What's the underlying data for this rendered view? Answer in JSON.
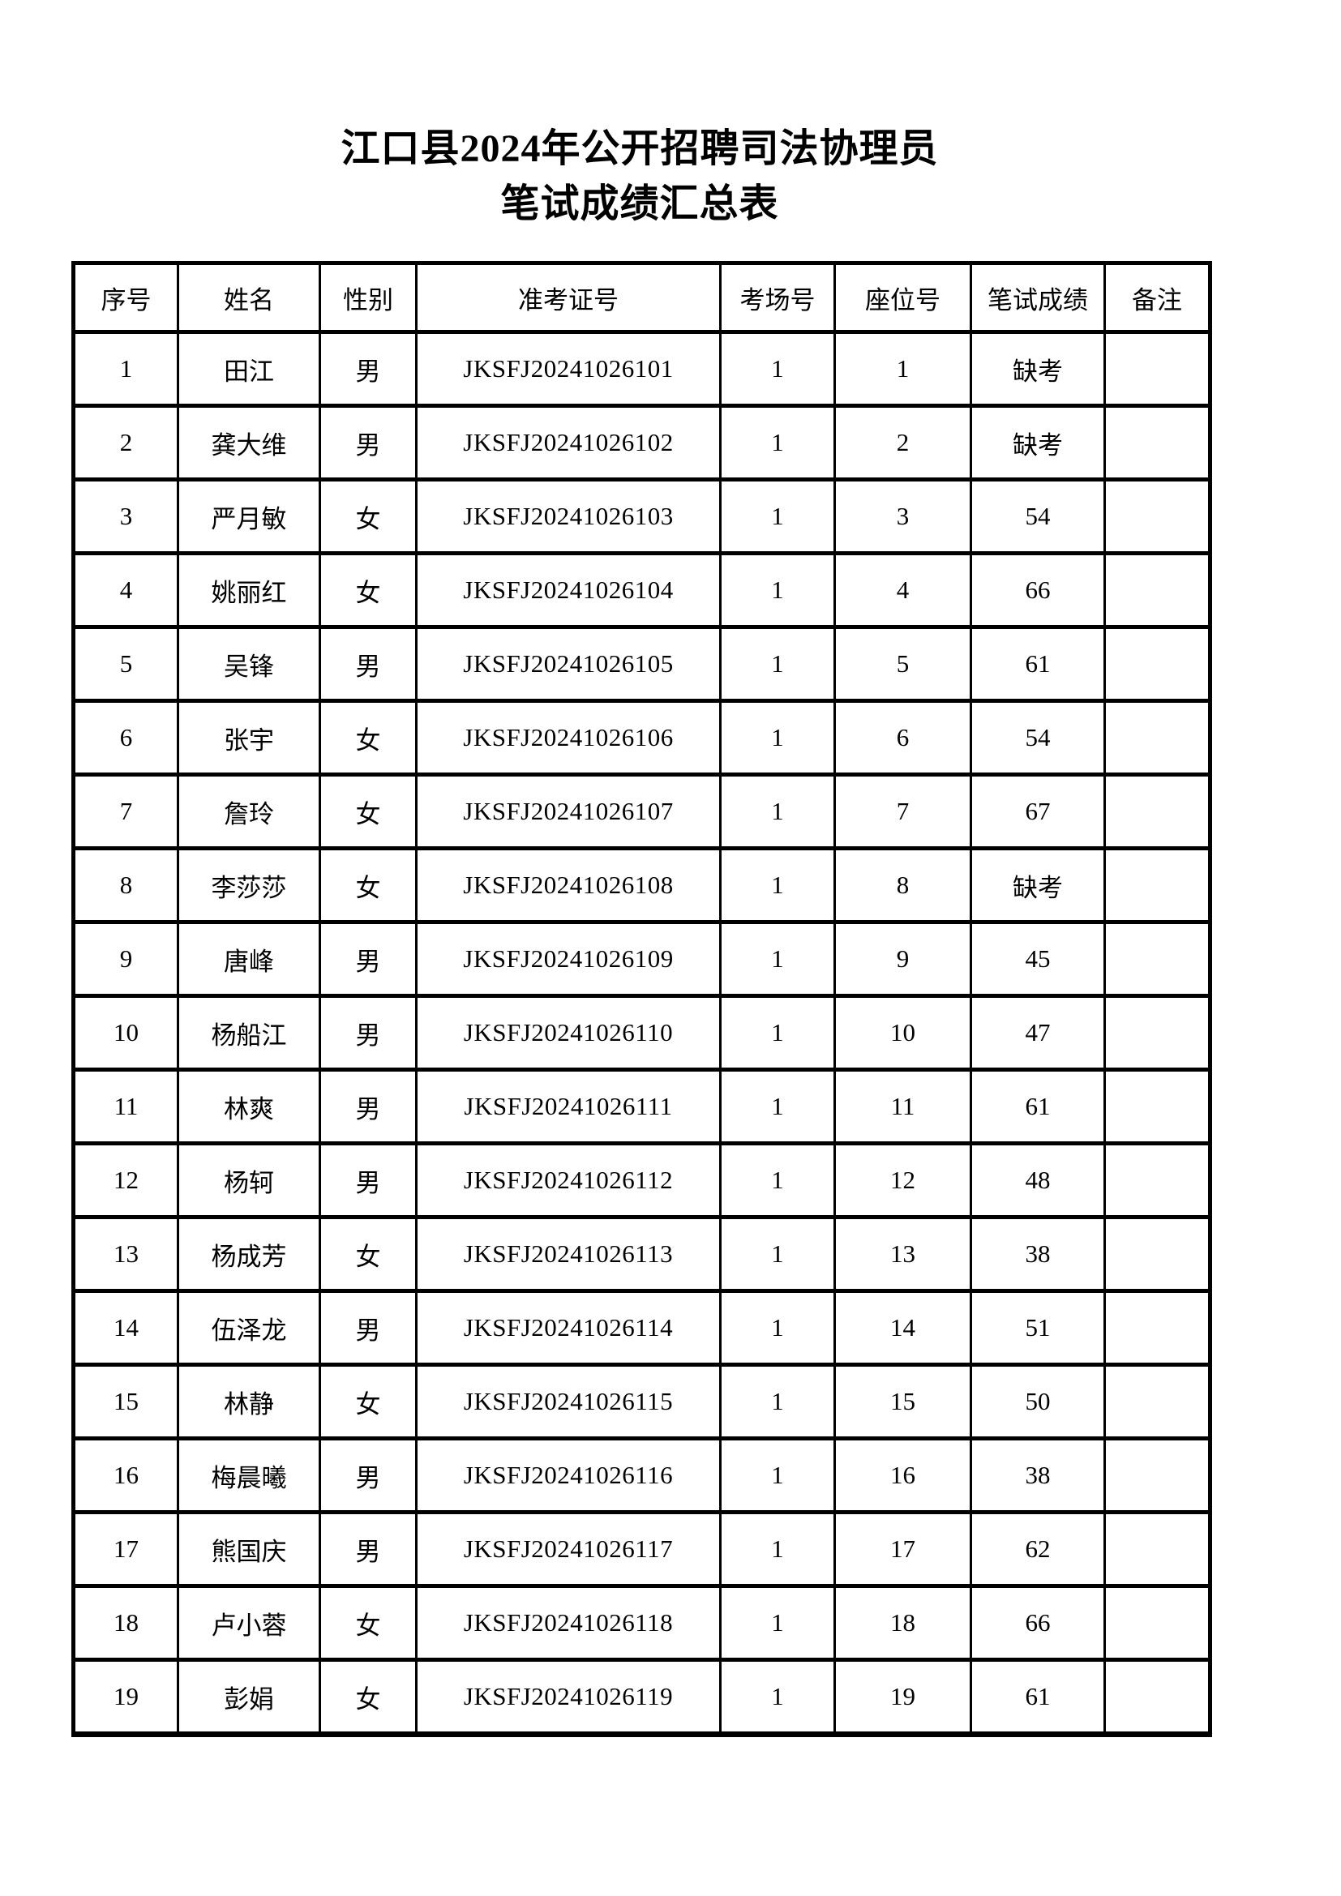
{
  "title": {
    "line1": "江口县2024年公开招聘司法协理员",
    "line2": "笔试成绩汇总表"
  },
  "table": {
    "columns": [
      "序号",
      "姓名",
      "性别",
      "准考证号",
      "考场号",
      "座位号",
      "笔试成绩",
      "备注"
    ],
    "rows": [
      [
        "1",
        "田江",
        "男",
        "JKSFJ20241026101",
        "1",
        "1",
        "缺考",
        ""
      ],
      [
        "2",
        "龚大维",
        "男",
        "JKSFJ20241026102",
        "1",
        "2",
        "缺考",
        ""
      ],
      [
        "3",
        "严月敏",
        "女",
        "JKSFJ20241026103",
        "1",
        "3",
        "54",
        ""
      ],
      [
        "4",
        "姚丽红",
        "女",
        "JKSFJ20241026104",
        "1",
        "4",
        "66",
        ""
      ],
      [
        "5",
        "吴锋",
        "男",
        "JKSFJ20241026105",
        "1",
        "5",
        "61",
        ""
      ],
      [
        "6",
        "张宇",
        "女",
        "JKSFJ20241026106",
        "1",
        "6",
        "54",
        ""
      ],
      [
        "7",
        "詹玲",
        "女",
        "JKSFJ20241026107",
        "1",
        "7",
        "67",
        ""
      ],
      [
        "8",
        "李莎莎",
        "女",
        "JKSFJ20241026108",
        "1",
        "8",
        "缺考",
        ""
      ],
      [
        "9",
        "唐峰",
        "男",
        "JKSFJ20241026109",
        "1",
        "9",
        "45",
        ""
      ],
      [
        "10",
        "杨船江",
        "男",
        "JKSFJ20241026110",
        "1",
        "10",
        "47",
        ""
      ],
      [
        "11",
        "林爽",
        "男",
        "JKSFJ20241026111",
        "1",
        "11",
        "61",
        ""
      ],
      [
        "12",
        "杨轲",
        "男",
        "JKSFJ20241026112",
        "1",
        "12",
        "48",
        ""
      ],
      [
        "13",
        "杨成芳",
        "女",
        "JKSFJ20241026113",
        "1",
        "13",
        "38",
        ""
      ],
      [
        "14",
        "伍泽龙",
        "男",
        "JKSFJ20241026114",
        "1",
        "14",
        "51",
        ""
      ],
      [
        "15",
        "林静",
        "女",
        "JKSFJ20241026115",
        "1",
        "15",
        "50",
        ""
      ],
      [
        "16",
        "梅晨曦",
        "男",
        "JKSFJ20241026116",
        "1",
        "16",
        "38",
        ""
      ],
      [
        "17",
        "熊国庆",
        "男",
        "JKSFJ20241026117",
        "1",
        "17",
        "62",
        ""
      ],
      [
        "18",
        "卢小蓉",
        "女",
        "JKSFJ20241026118",
        "1",
        "18",
        "66",
        ""
      ],
      [
        "19",
        "彭娟",
        "女",
        "JKSFJ20241026119",
        "1",
        "19",
        "61",
        ""
      ]
    ]
  },
  "colors": {
    "background": "#ffffff",
    "text": "#000000",
    "border": "#000000"
  }
}
